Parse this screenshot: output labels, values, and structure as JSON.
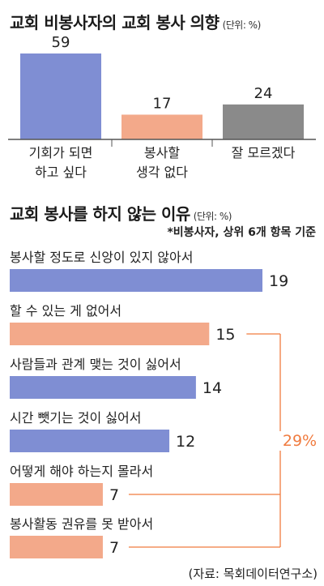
{
  "chart_data": [
    {
      "type": "bar",
      "title": "교회 비봉사자의 교회 봉사 의향",
      "unit": "(단위: %)",
      "categories": [
        [
          "기회가 되면",
          "하고 싶다"
        ],
        [
          "봉사할",
          "생각 없다"
        ],
        [
          "잘 모르겠다"
        ]
      ],
      "values": [
        59,
        17,
        24
      ],
      "colors": [
        "#7f8ed3",
        "#f3a98a",
        "#8a8a8a"
      ],
      "ylim": [
        0,
        70
      ]
    },
    {
      "type": "bar",
      "orientation": "horizontal",
      "title": "교회 봉사를 하지 않는 이유",
      "unit": "(단위: %)",
      "subtitle": "*비봉사자, 상위 6개 항목 기준",
      "categories": [
        "봉사할 정도로 신앙이 있지 않아서",
        "할 수 있는 게 없어서",
        "사람들과 관계 맺는 것이 싫어서",
        "시간 뺏기는 것이 싫어서",
        "어떻게 해야 하는지 몰라서",
        "봉사활동 권유를 못 받아서"
      ],
      "values": [
        19,
        15,
        14,
        12,
        7,
        7
      ],
      "colors": [
        "#7f8ed3",
        "#f3a98a",
        "#7f8ed3",
        "#7f8ed3",
        "#f3a98a",
        "#f3a98a"
      ],
      "xlim": [
        0,
        20
      ],
      "annotation": {
        "label": "29%",
        "color": "#f07b3f",
        "groups": [
          1,
          4,
          5
        ]
      }
    }
  ],
  "source": "(자료: 목회데이터연구소)"
}
